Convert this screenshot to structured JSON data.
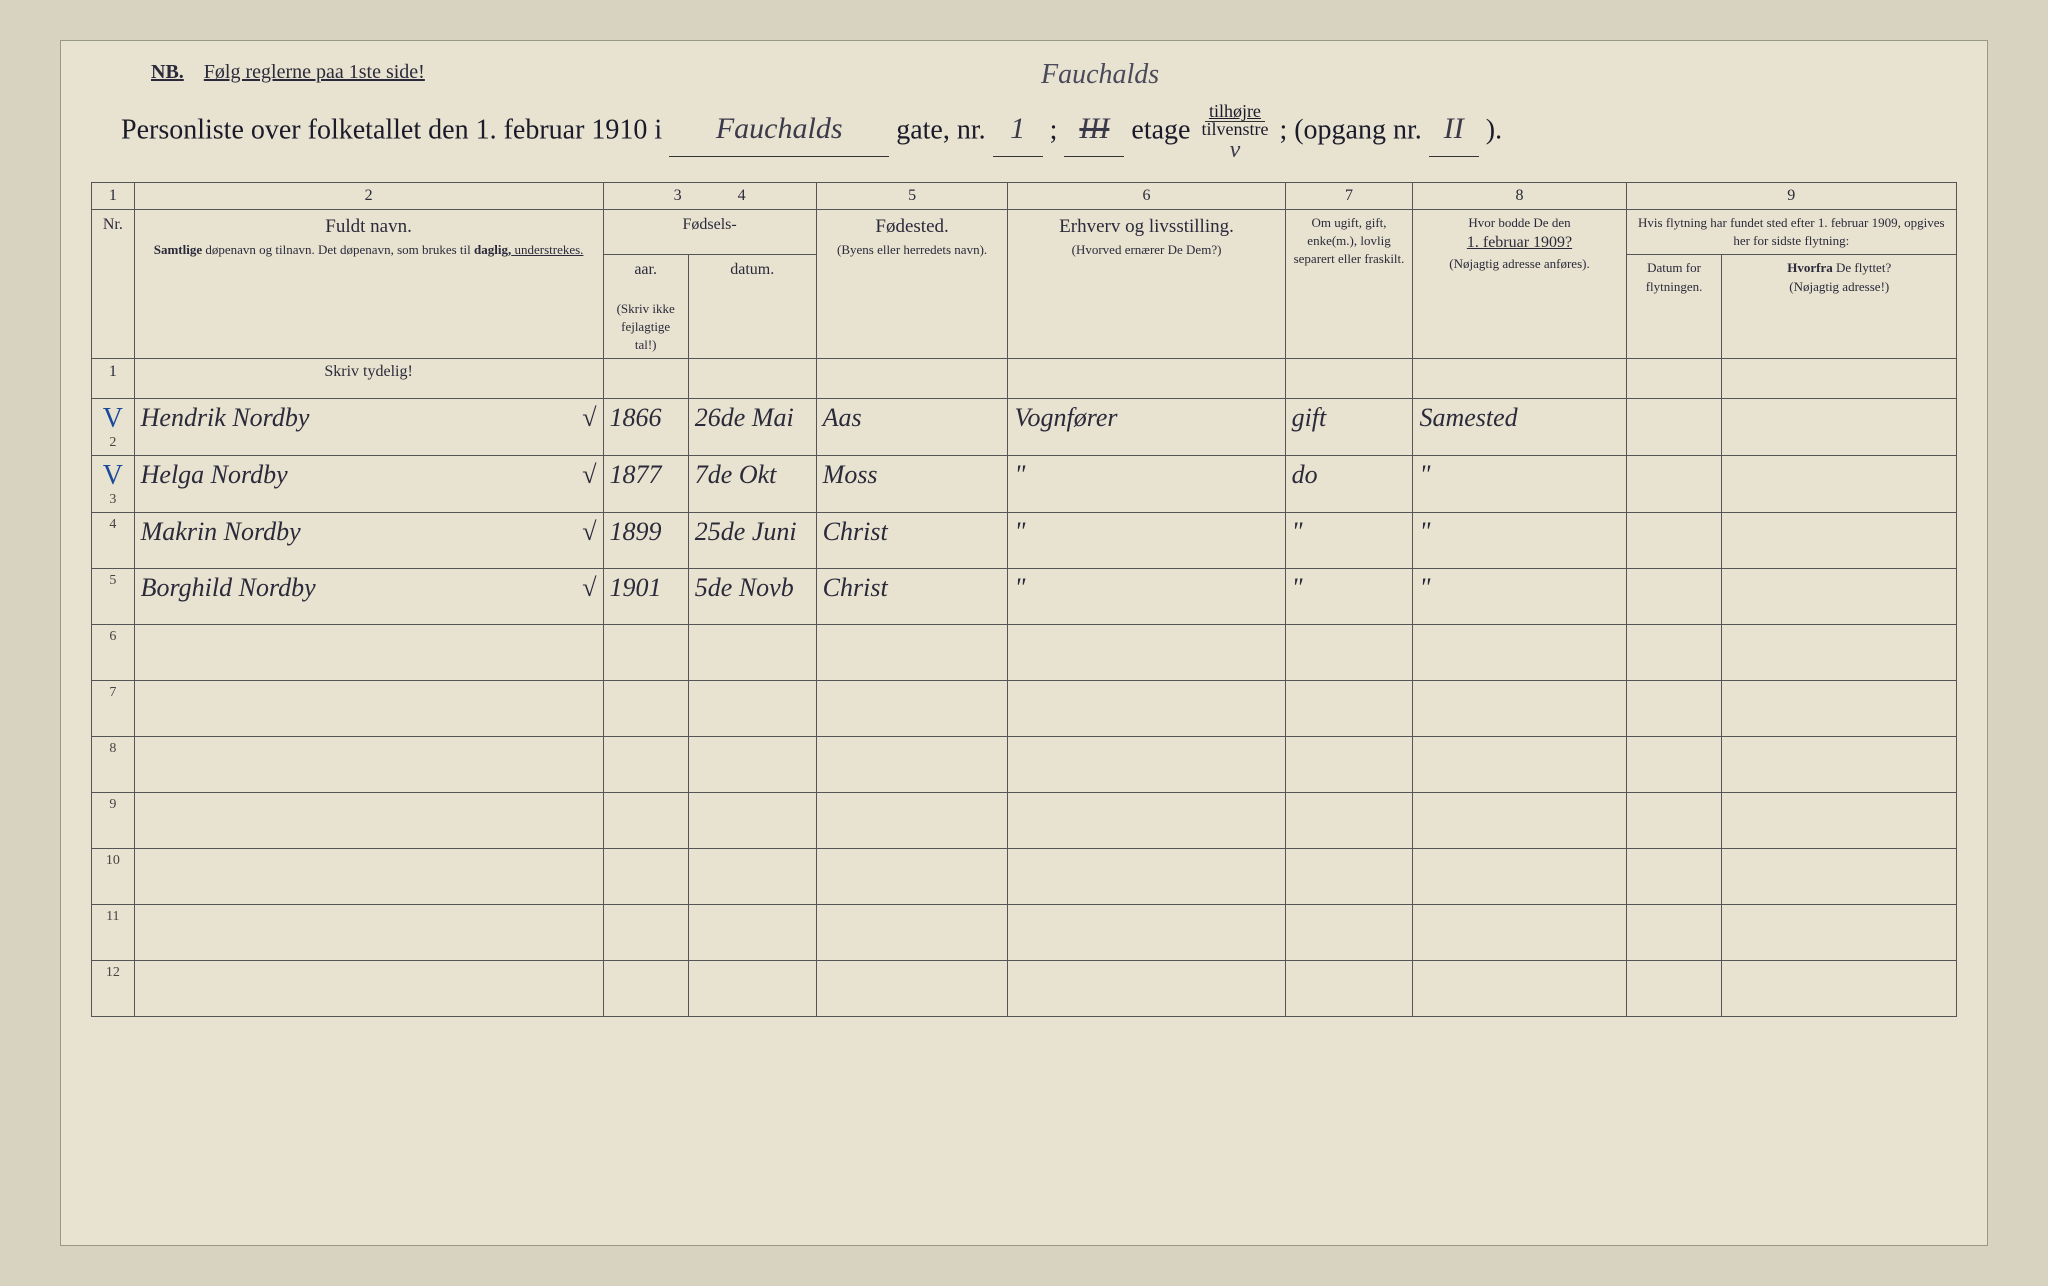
{
  "nb": {
    "prefix": "NB.",
    "text": "Følg reglerne paa 1ste side!"
  },
  "handwritten_top": "Fauchalds",
  "title_line": {
    "t1": "Personliste over folketallet den 1. februar 1910 i",
    "street_hw": "Fauchalds",
    "t2": "gate, nr.",
    "nr_hw": "1",
    "t3": ";",
    "etage_hw_struck": "III",
    "t4": "etage",
    "frac_top": "tilhøjre",
    "frac_bot": "tilvenstre",
    "frac_hw": "v",
    "t5": "; (opgang nr.",
    "opgang_hw": "II",
    "t6": ")."
  },
  "column_numbers": [
    "1",
    "2",
    "3",
    "4",
    "5",
    "6",
    "7",
    "8",
    "9"
  ],
  "headers": {
    "nr": "Nr.",
    "name_big": "Fuldt navn.",
    "name_sub1": "Samtlige",
    "name_sub2": " døpenavn og tilnavn.  Det døpenavn, som brukes til ",
    "name_sub3": "daglig,",
    "name_sub4": " understrekes.",
    "fodsels": "Fødsels-",
    "aar": "aar.",
    "datum": "datum.",
    "aar_note": "(Skriv ikke fejlagtige tal!)",
    "fodested_big": "Fødested.",
    "fodested_sub": "(Byens eller herredets navn).",
    "erhverv_big": "Erhverv og livsstilling.",
    "erhverv_sub": "(Hvorved ernærer De Dem?)",
    "ugift": "Om ugift, gift, enke(m.), lovlig separert eller fraskilt.",
    "bodde_big": "Hvor bodde De den",
    "bodde_date": "1. februar 1909?",
    "bodde_sub": "(Nøjagtig adresse anføres).",
    "flytning_top": "Hvis flytning har fundet sted efter 1. februar 1909, opgives her for sidste flytning:",
    "flytning_datum": "Datum for flytningen.",
    "flytning_hvorfra_b": "Hvorfra",
    "flytning_hvorfra": " De flyttet?",
    "flytning_hvorfra_sub": "(Nøjagtig adresse!)"
  },
  "instruct": "Skriv tydelig!",
  "rows": [
    {
      "n": "1",
      "name": "",
      "aar": "",
      "datum": "",
      "sted": "",
      "erhverv": "",
      "gift": "",
      "bodde": "",
      "fd": "",
      "fh": ""
    },
    {
      "n": "2",
      "mark": "V",
      "name": "Hendrik Nordby",
      "chk": "√",
      "aar": "1866",
      "datum": "26de Mai",
      "sted": "Aas",
      "erhverv": "Vognfører",
      "gift": "gift",
      "bodde": "Samested",
      "fd": "",
      "fh": ""
    },
    {
      "n": "3",
      "mark": "V",
      "name": "Helga Nordby",
      "chk": "√",
      "aar": "1877",
      "datum": "7de Okt",
      "sted": "Moss",
      "erhverv": "\"",
      "gift": "do",
      "bodde": "\"",
      "fd": "",
      "fh": ""
    },
    {
      "n": "4",
      "mark": "",
      "name": "Makrin Nordby",
      "chk": "√",
      "aar": "1899",
      "datum": "25de Juni",
      "sted": "Christ",
      "erhverv": "\"",
      "gift": "\"",
      "bodde": "\"",
      "fd": "",
      "fh": ""
    },
    {
      "n": "5",
      "mark": "",
      "name": "Borghild Nordby",
      "chk": "√",
      "aar": "1901",
      "datum": "5de Novb",
      "sted": "Christ",
      "erhverv": "\"",
      "gift": "\"",
      "bodde": "\"",
      "fd": "",
      "fh": ""
    },
    {
      "n": "6",
      "name": "",
      "aar": "",
      "datum": "",
      "sted": "",
      "erhverv": "",
      "gift": "",
      "bodde": "",
      "fd": "",
      "fh": ""
    },
    {
      "n": "7",
      "name": "",
      "aar": "",
      "datum": "",
      "sted": "",
      "erhverv": "",
      "gift": "",
      "bodde": "",
      "fd": "",
      "fh": ""
    },
    {
      "n": "8",
      "name": "",
      "aar": "",
      "datum": "",
      "sted": "",
      "erhverv": "",
      "gift": "",
      "bodde": "",
      "fd": "",
      "fh": ""
    },
    {
      "n": "9",
      "name": "",
      "aar": "",
      "datum": "",
      "sted": "",
      "erhverv": "",
      "gift": "",
      "bodde": "",
      "fd": "",
      "fh": ""
    },
    {
      "n": "10",
      "name": "",
      "aar": "",
      "datum": "",
      "sted": "",
      "erhverv": "",
      "gift": "",
      "bodde": "",
      "fd": "",
      "fh": ""
    },
    {
      "n": "11",
      "name": "",
      "aar": "",
      "datum": "",
      "sted": "",
      "erhverv": "",
      "gift": "",
      "bodde": "",
      "fd": "",
      "fh": ""
    },
    {
      "n": "12",
      "name": "",
      "aar": "",
      "datum": "",
      "sted": "",
      "erhverv": "",
      "gift": "",
      "bodde": "",
      "fd": "",
      "fh": ""
    }
  ],
  "colors": {
    "paper": "#e8e2d0",
    "ink": "#2a2a3a",
    "blue_mark": "#2a5aaa",
    "rule": "#555"
  }
}
